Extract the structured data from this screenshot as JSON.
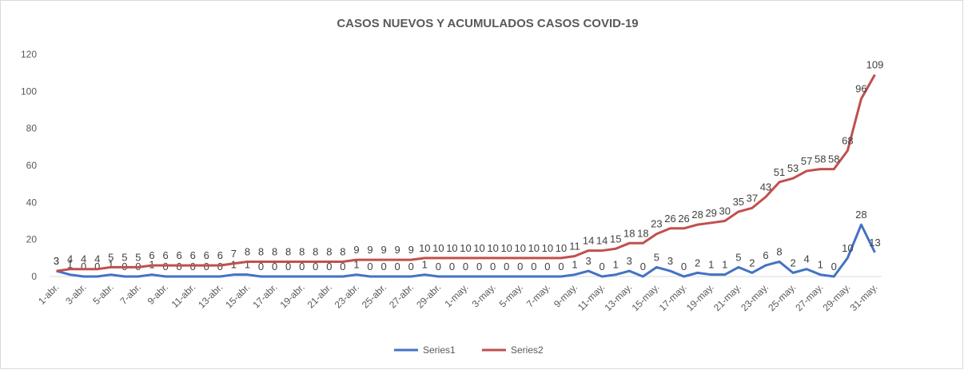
{
  "chart_data": {
    "type": "line",
    "title": "CASOS NUEVOS Y ACUMULADOS CASOS COVID-19",
    "categories": [
      "1-abr.",
      null,
      "3-abr.",
      null,
      "5-abr.",
      null,
      "7-abr.",
      null,
      "9-abr.",
      null,
      "11-abr.",
      null,
      "13-abr.",
      null,
      "15-abr.",
      null,
      "17-abr.",
      null,
      "19-abr.",
      null,
      "21-abr.",
      null,
      "23-abr.",
      null,
      "25-abr.",
      null,
      "27-abr.",
      null,
      "29-abr.",
      null,
      "1-may.",
      null,
      "3-may.",
      null,
      "5-may.",
      null,
      "7-may.",
      null,
      "9-may.",
      null,
      "11-may.",
      null,
      "13-may.",
      null,
      "15-may.",
      null,
      "17-may.",
      null,
      "19-may.",
      null,
      "21-may.",
      null,
      "23-may.",
      null,
      "25-may.",
      null,
      "27-may.",
      null,
      "29-may.",
      null,
      "31-may."
    ],
    "series": [
      {
        "name": "Series1",
        "color": "#4472c4",
        "values": [
          3,
          1,
          0,
          0,
          1,
          0,
          0,
          1,
          0,
          0,
          0,
          0,
          0,
          1,
          1,
          0,
          0,
          0,
          0,
          0,
          0,
          0,
          1,
          0,
          0,
          0,
          0,
          1,
          0,
          0,
          0,
          0,
          0,
          0,
          0,
          0,
          0,
          0,
          1,
          3,
          0,
          1,
          3,
          0,
          5,
          3,
          0,
          2,
          1,
          1,
          5,
          2,
          6,
          8,
          2,
          4,
          1,
          0,
          10,
          28,
          13
        ]
      },
      {
        "name": "Series2",
        "color": "#c0504d",
        "values": [
          3,
          4,
          4,
          4,
          5,
          5,
          5,
          6,
          6,
          6,
          6,
          6,
          6,
          7,
          8,
          8,
          8,
          8,
          8,
          8,
          8,
          8,
          9,
          9,
          9,
          9,
          9,
          10,
          10,
          10,
          10,
          10,
          10,
          10,
          10,
          10,
          10,
          10,
          11,
          14,
          14,
          15,
          18,
          18,
          23,
          26,
          26,
          28,
          29,
          30,
          35,
          37,
          43,
          51,
          53,
          57,
          58,
          58,
          68,
          96,
          109
        ]
      }
    ],
    "ylim": [
      0,
      120
    ],
    "yticks": [
      0,
      20,
      40,
      60,
      80,
      100,
      120
    ],
    "grid": false,
    "legend": "bottom"
  }
}
